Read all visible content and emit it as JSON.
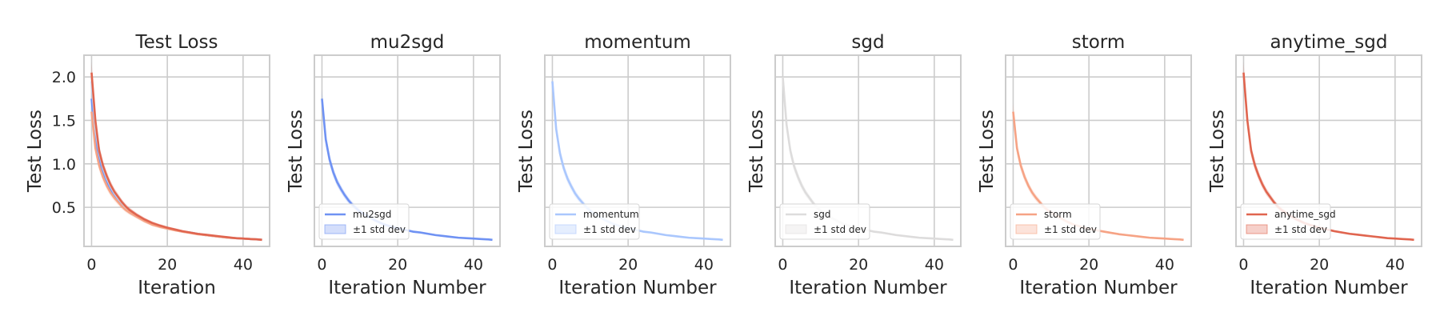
{
  "chart_data": [
    {
      "type": "line",
      "title": "Test Loss",
      "xlabel": "Iteration",
      "ylabel": "Test Loss",
      "xlim": [
        -2,
        47
      ],
      "ylim": [
        0.05,
        2.25
      ],
      "xticks": [
        0,
        20,
        40
      ],
      "yticks": [
        0.5,
        1.0,
        1.5,
        2.0
      ],
      "ytick_labels": [
        "0.5",
        "1.0",
        "1.5",
        "2.0"
      ],
      "grid": true,
      "legend": null,
      "series": [
        {
          "color": "#6f92f3",
          "x": [
            0,
            1,
            2,
            3,
            4,
            5,
            6,
            7,
            8,
            9,
            10,
            12,
            14,
            16,
            18,
            20,
            22,
            24,
            26,
            28,
            30,
            32,
            34,
            36,
            38,
            40,
            42,
            44,
            45
          ],
          "y": [
            1.75,
            1.28,
            1.05,
            0.9,
            0.79,
            0.71,
            0.64,
            0.58,
            0.53,
            0.49,
            0.45,
            0.4,
            0.35,
            0.31,
            0.28,
            0.26,
            0.24,
            0.22,
            0.21,
            0.195,
            0.18,
            0.17,
            0.16,
            0.15,
            0.145,
            0.14,
            0.135,
            0.13,
            0.125
          ]
        },
        {
          "color": "#aac7fd",
          "x": [
            0,
            1,
            2,
            3,
            4,
            5,
            6,
            7,
            8,
            9,
            10,
            12,
            14,
            16,
            18,
            20,
            22,
            24,
            26,
            28,
            30,
            32,
            34,
            36,
            38,
            40,
            42,
            44,
            45
          ],
          "y": [
            1.95,
            1.4,
            1.12,
            0.95,
            0.83,
            0.74,
            0.66,
            0.6,
            0.55,
            0.5,
            0.46,
            0.4,
            0.35,
            0.31,
            0.28,
            0.26,
            0.24,
            0.22,
            0.21,
            0.195,
            0.18,
            0.17,
            0.16,
            0.15,
            0.145,
            0.14,
            0.135,
            0.13,
            0.125
          ]
        },
        {
          "color": "#dddcdc",
          "x": [
            0,
            1,
            2,
            3,
            4,
            5,
            6,
            7,
            8,
            9,
            10,
            12,
            14,
            16,
            18,
            20,
            22,
            24,
            26,
            28,
            30,
            32,
            34,
            36,
            38,
            40,
            42,
            44,
            45
          ],
          "y": [
            2.0,
            1.45,
            1.15,
            0.97,
            0.85,
            0.75,
            0.67,
            0.61,
            0.55,
            0.5,
            0.46,
            0.4,
            0.35,
            0.31,
            0.28,
            0.26,
            0.24,
            0.22,
            0.21,
            0.195,
            0.18,
            0.17,
            0.16,
            0.15,
            0.145,
            0.14,
            0.135,
            0.13,
            0.125
          ]
        },
        {
          "color": "#f6a385",
          "x": [
            0,
            1,
            2,
            3,
            4,
            5,
            6,
            7,
            8,
            9,
            10,
            12,
            14,
            16,
            18,
            20,
            22,
            24,
            26,
            28,
            30,
            32,
            34,
            36,
            38,
            40,
            42,
            44,
            45
          ],
          "y": [
            1.6,
            1.18,
            0.98,
            0.85,
            0.75,
            0.67,
            0.61,
            0.56,
            0.51,
            0.47,
            0.44,
            0.39,
            0.34,
            0.3,
            0.275,
            0.255,
            0.235,
            0.22,
            0.205,
            0.19,
            0.18,
            0.17,
            0.16,
            0.15,
            0.145,
            0.14,
            0.135,
            0.13,
            0.125
          ]
        },
        {
          "color": "#e0654f",
          "x": [
            0,
            1,
            2,
            3,
            4,
            5,
            6,
            7,
            8,
            9,
            10,
            12,
            14,
            16,
            18,
            20,
            22,
            24,
            26,
            28,
            30,
            32,
            34,
            36,
            38,
            40,
            42,
            44,
            45
          ],
          "y": [
            2.05,
            1.5,
            1.15,
            0.98,
            0.86,
            0.76,
            0.68,
            0.62,
            0.56,
            0.51,
            0.47,
            0.41,
            0.36,
            0.32,
            0.29,
            0.265,
            0.245,
            0.225,
            0.21,
            0.195,
            0.185,
            0.175,
            0.165,
            0.155,
            0.145,
            0.14,
            0.135,
            0.13,
            0.125
          ]
        }
      ]
    },
    {
      "type": "line",
      "title": "mu2sgd",
      "xlabel": "Iteration Number",
      "ylabel": "Test Loss",
      "xlim": [
        -2,
        47
      ],
      "ylim": [
        0.05,
        2.25
      ],
      "xticks": [
        0,
        20,
        40
      ],
      "yticks": [
        0.5,
        1.0,
        1.5,
        2.0
      ],
      "ytick_labels": [],
      "grid": true,
      "legend": "lower-left",
      "series": [
        {
          "name": "mu2sgd",
          "color": "#6f92f3",
          "x": [
            0,
            1,
            2,
            3,
            4,
            5,
            6,
            7,
            8,
            9,
            10,
            12,
            14,
            16,
            18,
            20,
            22,
            24,
            26,
            28,
            30,
            32,
            34,
            36,
            38,
            40,
            42,
            44,
            45
          ],
          "y": [
            1.75,
            1.28,
            1.05,
            0.9,
            0.79,
            0.71,
            0.64,
            0.58,
            0.53,
            0.49,
            0.45,
            0.4,
            0.35,
            0.31,
            0.28,
            0.26,
            0.24,
            0.22,
            0.21,
            0.195,
            0.18,
            0.17,
            0.16,
            0.15,
            0.145,
            0.14,
            0.135,
            0.13,
            0.125
          ]
        }
      ],
      "band_label": "±1 std dev"
    },
    {
      "type": "line",
      "title": "momentum",
      "xlabel": "Iteration Number",
      "ylabel": "Test Loss",
      "xlim": [
        -2,
        47
      ],
      "ylim": [
        0.05,
        2.25
      ],
      "xticks": [
        0,
        20,
        40
      ],
      "yticks": [
        0.5,
        1.0,
        1.5,
        2.0
      ],
      "ytick_labels": [],
      "grid": true,
      "legend": "lower-left",
      "series": [
        {
          "name": "momentum",
          "color": "#aac7fd",
          "x": [
            0,
            1,
            2,
            3,
            4,
            5,
            6,
            7,
            8,
            9,
            10,
            12,
            14,
            16,
            18,
            20,
            22,
            24,
            26,
            28,
            30,
            32,
            34,
            36,
            38,
            40,
            42,
            44,
            45
          ],
          "y": [
            1.95,
            1.4,
            1.12,
            0.95,
            0.83,
            0.74,
            0.66,
            0.6,
            0.55,
            0.5,
            0.46,
            0.4,
            0.35,
            0.31,
            0.28,
            0.26,
            0.24,
            0.22,
            0.21,
            0.195,
            0.18,
            0.17,
            0.16,
            0.15,
            0.145,
            0.14,
            0.135,
            0.13,
            0.125
          ]
        }
      ],
      "band_label": "±1 std dev"
    },
    {
      "type": "line",
      "title": "sgd",
      "xlabel": "Iteration Number",
      "ylabel": "Test Loss",
      "xlim": [
        -2,
        47
      ],
      "ylim": [
        0.05,
        2.25
      ],
      "xticks": [
        0,
        20,
        40
      ],
      "yticks": [
        0.5,
        1.0,
        1.5,
        2.0
      ],
      "ytick_labels": [],
      "grid": true,
      "legend": "lower-left",
      "series": [
        {
          "name": "sgd",
          "color": "#dddcdc",
          "x": [
            0,
            1,
            2,
            3,
            4,
            5,
            6,
            7,
            8,
            9,
            10,
            12,
            14,
            16,
            18,
            20,
            22,
            24,
            26,
            28,
            30,
            32,
            34,
            36,
            38,
            40,
            42,
            44,
            45
          ],
          "y": [
            2.0,
            1.45,
            1.15,
            0.97,
            0.85,
            0.75,
            0.67,
            0.61,
            0.55,
            0.5,
            0.46,
            0.4,
            0.35,
            0.31,
            0.28,
            0.26,
            0.24,
            0.22,
            0.21,
            0.195,
            0.18,
            0.17,
            0.16,
            0.15,
            0.145,
            0.14,
            0.135,
            0.13,
            0.125
          ]
        }
      ],
      "band_label": "±1 std dev"
    },
    {
      "type": "line",
      "title": "storm",
      "xlabel": "Iteration Number",
      "ylabel": "Test Loss",
      "xlim": [
        -2,
        47
      ],
      "ylim": [
        0.05,
        2.25
      ],
      "xticks": [
        0,
        20,
        40
      ],
      "yticks": [
        0.5,
        1.0,
        1.5,
        2.0
      ],
      "ytick_labels": [],
      "grid": true,
      "legend": "lower-left",
      "series": [
        {
          "name": "storm",
          "color": "#f6a385",
          "x": [
            0,
            1,
            2,
            3,
            4,
            5,
            6,
            7,
            8,
            9,
            10,
            12,
            14,
            16,
            18,
            20,
            22,
            24,
            26,
            28,
            30,
            32,
            34,
            36,
            38,
            40,
            42,
            44,
            45
          ],
          "y": [
            1.6,
            1.18,
            0.98,
            0.85,
            0.75,
            0.67,
            0.61,
            0.56,
            0.51,
            0.47,
            0.44,
            0.39,
            0.34,
            0.3,
            0.275,
            0.255,
            0.235,
            0.22,
            0.205,
            0.19,
            0.18,
            0.17,
            0.16,
            0.15,
            0.145,
            0.14,
            0.135,
            0.13,
            0.125
          ]
        }
      ],
      "band_label": "±1 std dev"
    },
    {
      "type": "line",
      "title": "anytime_sgd",
      "xlabel": "Iteration Number",
      "ylabel": "Test Loss",
      "xlim": [
        -2,
        47
      ],
      "ylim": [
        0.05,
        2.25
      ],
      "xticks": [
        0,
        20,
        40
      ],
      "yticks": [
        0.5,
        1.0,
        1.5,
        2.0
      ],
      "ytick_labels": [],
      "grid": true,
      "legend": "lower-left",
      "series": [
        {
          "name": "anytime_sgd",
          "color": "#e0654f",
          "x": [
            0,
            1,
            2,
            3,
            4,
            5,
            6,
            7,
            8,
            9,
            10,
            12,
            14,
            16,
            18,
            20,
            22,
            24,
            26,
            28,
            30,
            32,
            34,
            36,
            38,
            40,
            42,
            44,
            45
          ],
          "y": [
            2.05,
            1.5,
            1.15,
            0.98,
            0.86,
            0.76,
            0.68,
            0.62,
            0.56,
            0.51,
            0.47,
            0.41,
            0.36,
            0.32,
            0.29,
            0.265,
            0.245,
            0.225,
            0.21,
            0.195,
            0.185,
            0.175,
            0.165,
            0.155,
            0.145,
            0.14,
            0.135,
            0.13,
            0.125
          ]
        }
      ],
      "band_label": "±1 std dev"
    }
  ]
}
